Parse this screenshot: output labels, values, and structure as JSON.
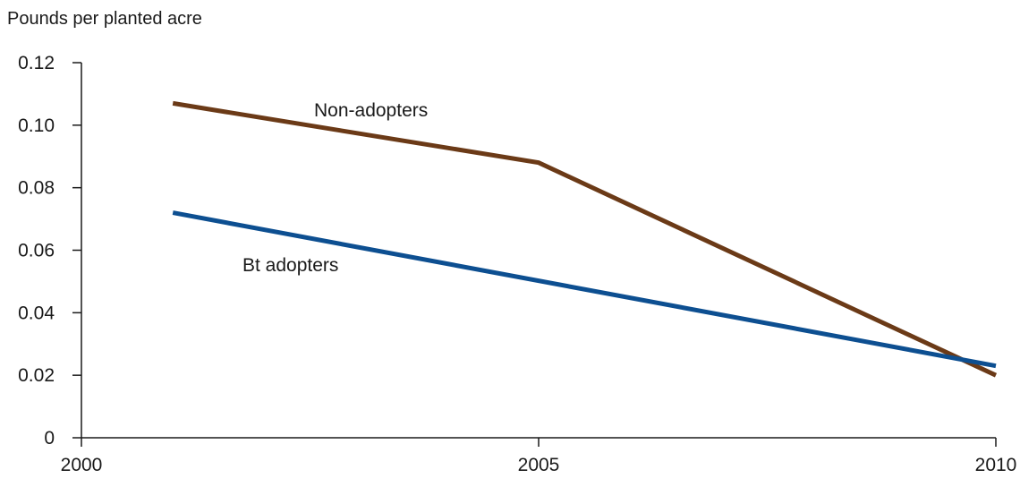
{
  "chart_data": {
    "type": "line",
    "title": "",
    "ylabel": "Pounds per planted acre",
    "xlabel": "",
    "xlim": [
      2000,
      2010
    ],
    "ylim": [
      0,
      0.12
    ],
    "x_ticks": [
      {
        "value": 2000,
        "label": "2000"
      },
      {
        "value": 2005,
        "label": "2005"
      },
      {
        "value": 2010,
        "label": "2010"
      }
    ],
    "y_ticks": [
      {
        "value": 0,
        "label": "0"
      },
      {
        "value": 0.02,
        "label": "0.02"
      },
      {
        "value": 0.04,
        "label": "0.04"
      },
      {
        "value": 0.06,
        "label": "0.06"
      },
      {
        "value": 0.08,
        "label": "0.08"
      },
      {
        "value": 0.1,
        "label": "0.10"
      },
      {
        "value": 0.12,
        "label": "0.12"
      }
    ],
    "grid": false,
    "legend": "inline labels",
    "series": [
      {
        "name": "Non-adopters",
        "color": "#6b3a17",
        "x": [
          2001,
          2005,
          2010
        ],
        "y": [
          0.107,
          0.088,
          0.02
        ]
      },
      {
        "name": "Bt adopters",
        "color": "#0d4f91",
        "x": [
          2001,
          2010
        ],
        "y": [
          0.072,
          0.023
        ]
      }
    ]
  }
}
